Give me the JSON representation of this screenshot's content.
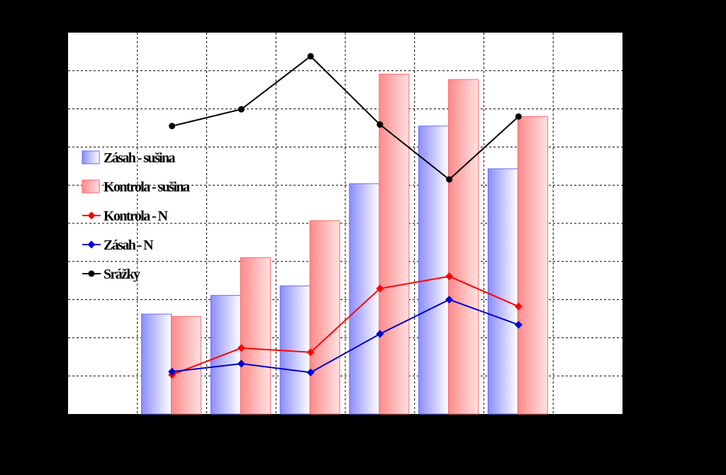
{
  "chart_data": {
    "type": "bar",
    "categories": [
      "",
      "",
      "",
      "",
      "",
      ""
    ],
    "ylim": [
      0,
      10
    ],
    "grid": true,
    "legend_position": "left",
    "series": [
      {
        "name": "Zásah - sušina",
        "kind": "bar",
        "color": "#6666ff",
        "values": [
          2.62,
          3.11,
          3.36,
          6.04,
          7.55,
          6.43
        ]
      },
      {
        "name": "Kontrola - sušina",
        "kind": "bar",
        "color": "#ff8080",
        "values": [
          2.56,
          4.1,
          5.07,
          8.91,
          8.77,
          7.8
        ]
      },
      {
        "name": "Kontrola - N",
        "kind": "line",
        "color": "#ff0000",
        "values": [
          1.03,
          1.73,
          1.62,
          3.29,
          3.61,
          2.82
        ]
      },
      {
        "name": "Zásah - N",
        "kind": "line",
        "color": "#0000cc",
        "values": [
          1.11,
          1.32,
          1.09,
          2.1,
          3.0,
          2.34
        ]
      },
      {
        "name": "Srážky",
        "kind": "line",
        "color": "#000000",
        "values": [
          7.55,
          7.99,
          9.38,
          7.59,
          6.15,
          7.8
        ]
      }
    ]
  }
}
